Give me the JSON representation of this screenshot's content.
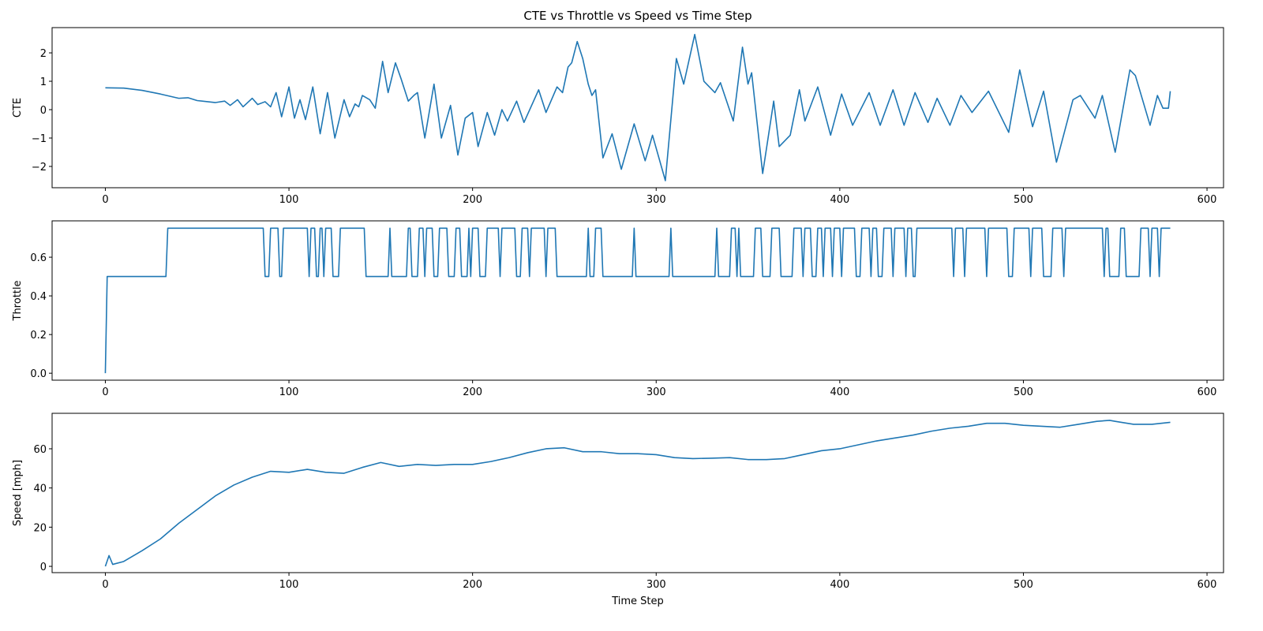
{
  "chart_data": [
    {
      "type": "line",
      "title": "CTE vs Throttle vs Speed vs Time Step",
      "ylabel": "CTE",
      "xlim": [
        -29,
        609
      ],
      "xticks": [
        0,
        100,
        200,
        300,
        400,
        500,
        600
      ],
      "ylim": [
        -2.75,
        2.89
      ],
      "yticks": [
        {
          "value": -2,
          "label": "−2"
        },
        {
          "value": -1,
          "label": "−1"
        },
        0,
        1,
        2
      ],
      "series": [
        {
          "color": "#1f77b4",
          "x": [
            0,
            10,
            20,
            30,
            40,
            45,
            50,
            60,
            65,
            68,
            72,
            75,
            80,
            83,
            87,
            90,
            93,
            96,
            100,
            103,
            106,
            109,
            113,
            117,
            121,
            125,
            130,
            133,
            136,
            138,
            140,
            144,
            147,
            151,
            154,
            158,
            161,
            165,
            168,
            170,
            174,
            179,
            183,
            188,
            192,
            196,
            200,
            203,
            208,
            212,
            216,
            219,
            224,
            228,
            236,
            240,
            246,
            249,
            252,
            254,
            257,
            260,
            263,
            265,
            267,
            271,
            276,
            281,
            288,
            294,
            298,
            305,
            311,
            315,
            321,
            326,
            332,
            335,
            342,
            347,
            350,
            352,
            358,
            364,
            367,
            373,
            378,
            381,
            388,
            395,
            401,
            407,
            416,
            422,
            429,
            435,
            441,
            448,
            453,
            460,
            466,
            472,
            481,
            492,
            498,
            505,
            511,
            518,
            527,
            531,
            539,
            543,
            550,
            558,
            561,
            569,
            573,
            576,
            579,
            580
          ],
          "values": [
            0.77,
            0.76,
            0.68,
            0.55,
            0.4,
            0.42,
            0.32,
            0.25,
            0.3,
            0.15,
            0.35,
            0.1,
            0.4,
            0.18,
            0.28,
            0.1,
            0.6,
            -0.25,
            0.8,
            -0.3,
            0.35,
            -0.35,
            0.8,
            -0.85,
            0.6,
            -1.0,
            0.35,
            -0.25,
            0.2,
            0.1,
            0.5,
            0.35,
            0.05,
            1.7,
            0.6,
            1.65,
            1.1,
            0.3,
            0.5,
            0.6,
            -1.0,
            0.9,
            -1.0,
            0.15,
            -1.6,
            -0.3,
            -0.1,
            -1.3,
            -0.1,
            -0.9,
            0.0,
            -0.4,
            0.3,
            -0.45,
            0.7,
            -0.1,
            0.8,
            0.6,
            1.5,
            1.65,
            2.4,
            1.8,
            0.9,
            0.5,
            0.7,
            -1.7,
            -0.85,
            -2.1,
            -0.5,
            -1.8,
            -0.9,
            -2.5,
            1.8,
            0.9,
            2.65,
            1.0,
            0.6,
            0.95,
            -0.4,
            2.2,
            0.9,
            1.3,
            -2.25,
            0.3,
            -1.3,
            -0.9,
            0.7,
            -0.4,
            0.8,
            -0.9,
            0.55,
            -0.55,
            0.6,
            -0.55,
            0.7,
            -0.55,
            0.6,
            -0.45,
            0.4,
            -0.55,
            0.5,
            -0.1,
            0.65,
            -0.8,
            1.4,
            -0.6,
            0.65,
            -1.85,
            0.35,
            0.5,
            -0.3,
            0.5,
            -1.5,
            1.4,
            1.2,
            -0.55,
            0.5,
            0.05,
            0.05,
            0.65
          ]
        }
      ]
    },
    {
      "type": "line",
      "ylabel": "Throttle",
      "xlim": [
        -29,
        609
      ],
      "xticks": [
        0,
        100,
        200,
        300,
        400,
        500,
        600
      ],
      "ylim": [
        -0.036,
        0.788
      ],
      "yticks": [
        {
          "value": 0,
          "label": "0.0"
        },
        0.2,
        0.4,
        0.6
      ],
      "series": [
        {
          "color": "#1f77b4",
          "x": [
            0,
            1,
            33,
            34,
            86,
            87,
            89,
            90,
            94,
            95,
            96,
            97,
            110,
            111,
            112,
            114,
            115,
            116,
            117,
            118,
            119,
            120,
            123,
            124,
            127,
            128,
            141,
            142,
            154,
            155,
            156,
            164,
            165,
            166,
            167,
            170,
            171,
            173,
            174,
            175,
            178,
            179,
            181,
            182,
            186,
            187,
            190,
            191,
            193,
            194,
            197,
            198,
            199,
            200,
            203,
            204,
            207,
            208,
            214,
            215,
            216,
            223,
            224,
            226,
            227,
            230,
            231,
            232,
            239,
            240,
            241,
            245,
            246,
            262,
            263,
            264,
            266,
            267,
            270,
            271,
            287,
            288,
            289,
            307,
            308,
            309,
            332,
            333,
            334,
            340,
            341,
            343,
            344,
            345,
            346,
            353,
            354,
            357,
            358,
            362,
            363,
            367,
            368,
            374,
            375,
            379,
            380,
            381,
            384,
            385,
            387,
            388,
            390,
            391,
            392,
            395,
            396,
            397,
            400,
            401,
            402,
            408,
            409,
            411,
            412,
            416,
            417,
            418,
            420,
            421,
            423,
            424,
            428,
            429,
            430,
            435,
            436,
            437,
            439,
            440,
            441,
            442,
            461,
            462,
            463,
            467,
            468,
            469,
            479,
            480,
            481,
            491,
            492,
            494,
            495,
            503,
            504,
            505,
            510,
            511,
            515,
            516,
            521,
            522,
            523,
            543,
            544,
            545,
            546,
            547,
            552,
            553,
            555,
            556,
            563,
            564,
            568,
            569,
            570,
            573,
            574,
            575,
            580
          ],
          "values": [
            0,
            0.5,
            0.5,
            0.75,
            0.75,
            0.5,
            0.5,
            0.75,
            0.75,
            0.5,
            0.5,
            0.75,
            0.75,
            0.5,
            0.75,
            0.75,
            0.5,
            0.5,
            0.75,
            0.75,
            0.5,
            0.75,
            0.75,
            0.5,
            0.5,
            0.75,
            0.75,
            0.5,
            0.5,
            0.75,
            0.5,
            0.5,
            0.75,
            0.75,
            0.5,
            0.5,
            0.75,
            0.75,
            0.5,
            0.75,
            0.75,
            0.5,
            0.5,
            0.75,
            0.75,
            0.5,
            0.5,
            0.75,
            0.75,
            0.5,
            0.5,
            0.75,
            0.5,
            0.75,
            0.75,
            0.5,
            0.5,
            0.75,
            0.75,
            0.5,
            0.75,
            0.75,
            0.5,
            0.5,
            0.75,
            0.75,
            0.5,
            0.75,
            0.75,
            0.5,
            0.75,
            0.75,
            0.5,
            0.5,
            0.75,
            0.5,
            0.5,
            0.75,
            0.75,
            0.5,
            0.5,
            0.75,
            0.5,
            0.5,
            0.75,
            0.5,
            0.5,
            0.75,
            0.5,
            0.5,
            0.75,
            0.75,
            0.5,
            0.75,
            0.5,
            0.5,
            0.75,
            0.75,
            0.5,
            0.5,
            0.75,
            0.75,
            0.5,
            0.5,
            0.75,
            0.75,
            0.5,
            0.75,
            0.75,
            0.5,
            0.5,
            0.75,
            0.75,
            0.5,
            0.75,
            0.75,
            0.5,
            0.75,
            0.75,
            0.5,
            0.75,
            0.75,
            0.5,
            0.5,
            0.75,
            0.75,
            0.5,
            0.75,
            0.75,
            0.5,
            0.5,
            0.75,
            0.75,
            0.5,
            0.75,
            0.75,
            0.5,
            0.75,
            0.75,
            0.5,
            0.5,
            0.75,
            0.75,
            0.5,
            0.75,
            0.75,
            0.5,
            0.75,
            0.75,
            0.5,
            0.75,
            0.75,
            0.5,
            0.5,
            0.75,
            0.75,
            0.5,
            0.75,
            0.75,
            0.5,
            0.5,
            0.75,
            0.75,
            0.5,
            0.75,
            0.75,
            0.5,
            0.75,
            0.75,
            0.5,
            0.5,
            0.75,
            0.75,
            0.5,
            0.5,
            0.75,
            0.75,
            0.5,
            0.75,
            0.75,
            0.5,
            0.75,
            0.75
          ]
        }
      ]
    },
    {
      "type": "line",
      "ylabel": "Speed [mph]",
      "xlabel": "Time Step",
      "xlim": [
        -29,
        609
      ],
      "xticks": [
        0,
        100,
        200,
        300,
        400,
        500,
        600
      ],
      "ylim": [
        -3.2,
        78.1
      ],
      "yticks": [
        0,
        20,
        40,
        60
      ],
      "series": [
        {
          "color": "#1f77b4",
          "x": [
            0,
            2,
            4,
            10,
            20,
            30,
            40,
            50,
            60,
            70,
            80,
            90,
            100,
            110,
            120,
            130,
            140,
            150,
            160,
            170,
            180,
            190,
            200,
            210,
            220,
            230,
            240,
            250,
            260,
            270,
            280,
            290,
            300,
            310,
            320,
            330,
            340,
            350,
            360,
            370,
            380,
            390,
            400,
            410,
            420,
            430,
            440,
            450,
            460,
            470,
            480,
            490,
            500,
            510,
            520,
            530,
            540,
            547,
            550,
            560,
            570,
            580
          ],
          "values": [
            0,
            5.5,
            1,
            2.5,
            8,
            14,
            22,
            29,
            36,
            41.5,
            45.5,
            48.5,
            48,
            49.5,
            48,
            47.5,
            50.5,
            53,
            51,
            52,
            51.5,
            52,
            52,
            53.5,
            55.5,
            58,
            60,
            60.5,
            58.5,
            58.5,
            57.5,
            57.5,
            57,
            55.5,
            55,
            55.2,
            55.5,
            54.5,
            54.5,
            55,
            57,
            59,
            60,
            62,
            64,
            65.5,
            67,
            69,
            70.5,
            71.5,
            73,
            73,
            72,
            71.5,
            71,
            72.5,
            74,
            74.5,
            74,
            72.5,
            72.5,
            73.5
          ]
        }
      ]
    }
  ]
}
